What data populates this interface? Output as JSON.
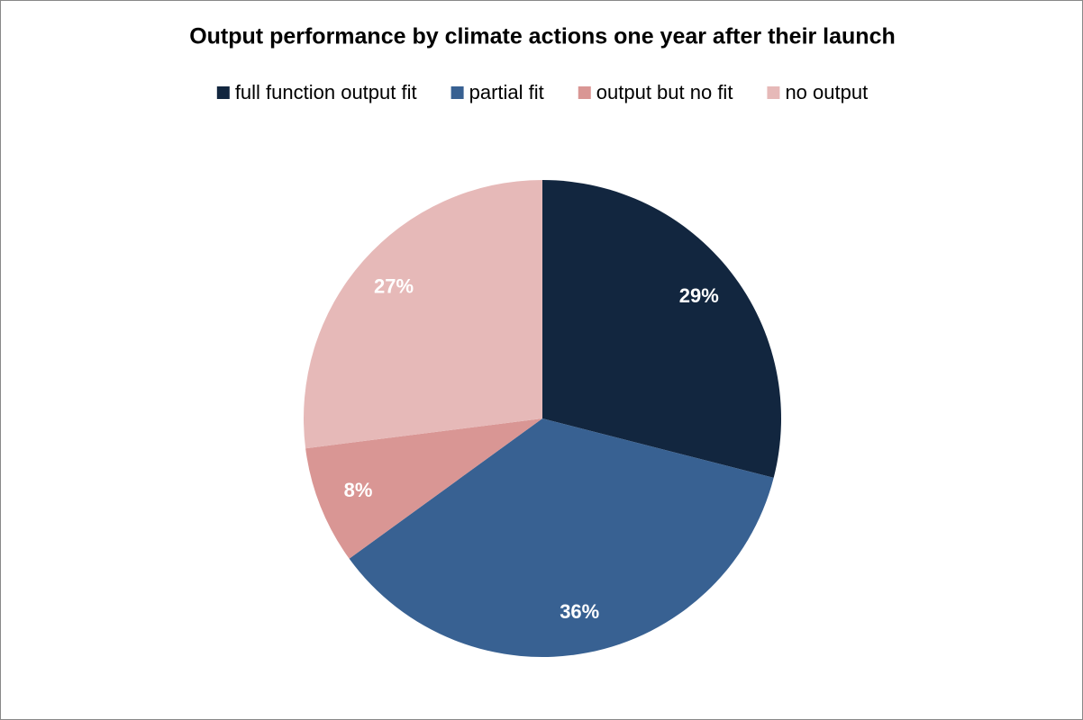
{
  "chart_data": {
    "type": "pie",
    "title": "Output performance by climate actions one year after their launch",
    "categories": [
      "full function output fit",
      "partial fit",
      "output but no fit",
      "no output"
    ],
    "values": [
      29,
      36,
      8,
      27
    ],
    "value_labels": [
      "29%",
      "36%",
      "8%",
      "27%"
    ],
    "colors": [
      "#12263f",
      "#386192",
      "#d99694",
      "#e6b9b8"
    ],
    "legend": "top"
  }
}
